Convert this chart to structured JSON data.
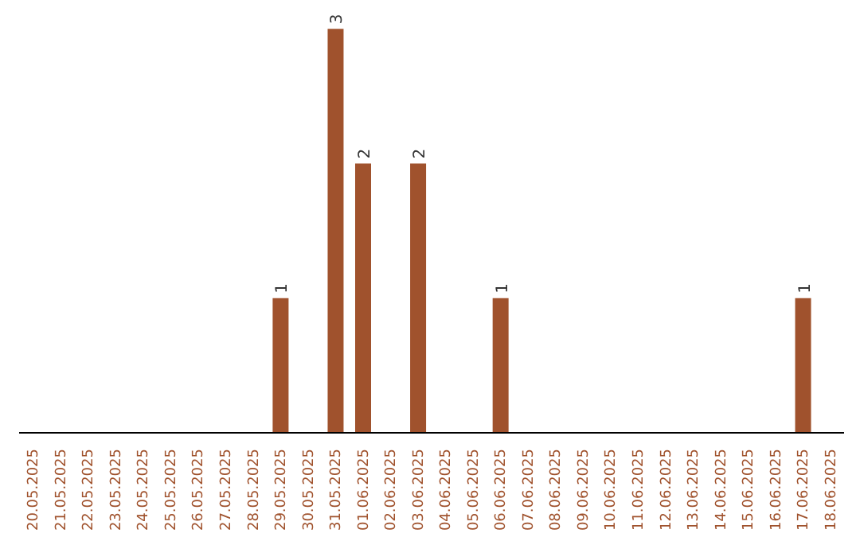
{
  "chart_data": {
    "type": "bar",
    "categories": [
      "20.05.2025",
      "21.05.2025",
      "22.05.2025",
      "23.05.2025",
      "24.05.2025",
      "25.05.2025",
      "26.05.2025",
      "27.05.2025",
      "28.05.2025",
      "29.05.2025",
      "30.05.2025",
      "31.05.2025",
      "01.06.2025",
      "02.06.2025",
      "03.06.2025",
      "04.06.2025",
      "05.06.2025",
      "06.06.2025",
      "07.06.2025",
      "08.06.2025",
      "09.06.2025",
      "10.06.2025",
      "11.06.2025",
      "12.06.2025",
      "13.06.2025",
      "14.06.2025",
      "15.06.2025",
      "16.06.2025",
      "17.06.2025",
      "18.06.2025"
    ],
    "values": [
      null,
      null,
      null,
      null,
      null,
      null,
      null,
      null,
      null,
      1,
      null,
      3,
      2,
      null,
      2,
      null,
      null,
      1,
      null,
      null,
      null,
      null,
      null,
      null,
      null,
      null,
      null,
      null,
      1,
      null
    ],
    "color": "#a0522d",
    "data_labels": true
  }
}
